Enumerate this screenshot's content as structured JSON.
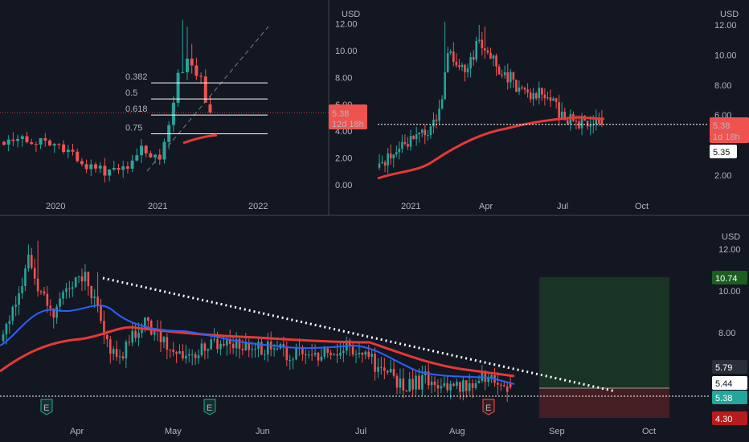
{
  "colors": {
    "background": "#131722",
    "up": "#26a69a",
    "down": "#ef5350",
    "ma_red": "#e53935",
    "ma_blue": "#2962ff",
    "axis_text": "#b2b5be",
    "grid_divider": "#2a2e39"
  },
  "currency": "USD",
  "chart_data": [
    {
      "id": "panel-weekly",
      "type": "candlestick",
      "ylim": [
        -0.5,
        13.5
      ],
      "y_ticks": [
        "12.00",
        "10.00",
        "8.00",
        "6.00",
        "4.00",
        "2.00",
        "0.00"
      ],
      "x_labels": [
        "2020",
        "2021",
        "2022"
      ],
      "fib_levels": [
        {
          "label": "0.382",
          "value": 7.6
        },
        {
          "label": "0.5",
          "value": 6.4
        },
        {
          "label": "0.618",
          "value": 5.2
        },
        {
          "label": "0.75",
          "value": 3.8
        }
      ],
      "price_tag": {
        "value": "5.38",
        "countdown": "12d 18h"
      }
    },
    {
      "id": "panel-daily-2021",
      "type": "candlestick",
      "ylim": [
        0.5,
        13.5
      ],
      "y_ticks": [
        "12.00",
        "10.00",
        "8.00",
        "6.00",
        "2.00"
      ],
      "x_labels": [
        "2021",
        "Apr",
        "Jul",
        "Oct"
      ],
      "price_tag": {
        "value": "5.38",
        "countdown": "1d 18h"
      },
      "level_tag": "5.35"
    },
    {
      "id": "panel-daily-recent",
      "type": "candlestick",
      "ylim": [
        4.3,
        13.0
      ],
      "y_ticks": [
        "12.00",
        "10.00",
        "8.00"
      ],
      "x_labels": [
        "Apr",
        "May",
        "Jun",
        "Jul",
        "Aug",
        "Sep",
        "Oct"
      ],
      "tags": [
        {
          "value": "10.74",
          "kind": "target"
        },
        {
          "value": "5.79",
          "kind": "neutral"
        },
        {
          "value": "5.44",
          "kind": "light"
        },
        {
          "value": "5.38",
          "kind": "current"
        },
        {
          "value": "4.30",
          "kind": "stop"
        }
      ],
      "earnings_markers": [
        "E",
        "E",
        "E"
      ]
    }
  ]
}
